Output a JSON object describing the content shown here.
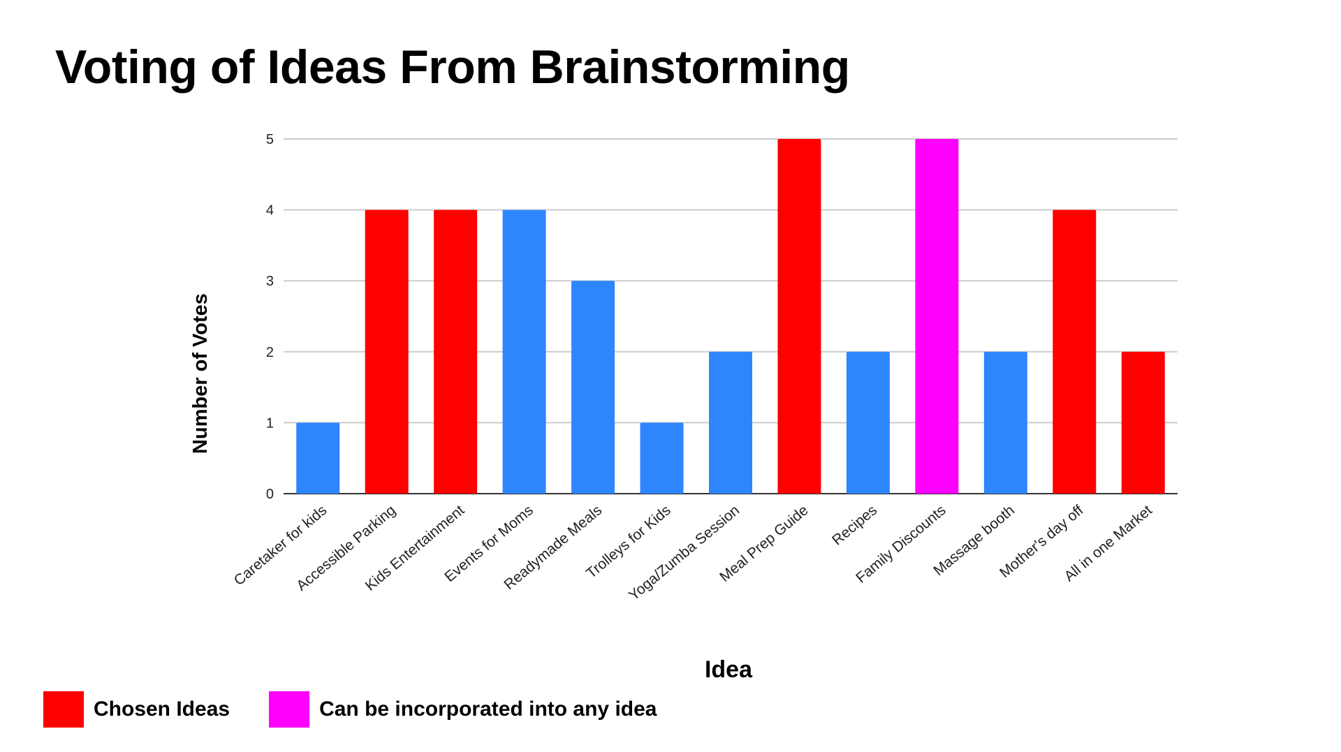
{
  "title": "Voting of Ideas From Brainstorming",
  "colors": {
    "chosen": "#ff0000",
    "incorporated": "#ff00ff",
    "default": "#2e86ff",
    "grid": "#cccccc",
    "axis": "#333333"
  },
  "legend": [
    {
      "label": "Chosen Ideas",
      "color": "#ff0000"
    },
    {
      "label": "Can be incorporated into any idea",
      "color": "#ff00ff"
    }
  ],
  "chart_data": {
    "type": "bar",
    "xlabel": "Idea",
    "ylabel": "Number of Votes",
    "ylim": [
      0,
      5
    ],
    "yticks": [
      0,
      1,
      2,
      3,
      4,
      5
    ],
    "grid": true,
    "categories": [
      "Caretaker for kids",
      "Accessible Parking",
      "Kids Entertainment",
      "Events for Moms",
      "Readymade Meals",
      "Trolleys for Kids",
      "Yoga/Zumba Session",
      "Meal Prep Guide",
      "Recipes",
      "Family Discounts",
      "Massage booth",
      "Mother's day off",
      "All in one Market"
    ],
    "values": [
      1,
      4,
      4,
      4,
      3,
      1,
      2,
      5,
      2,
      5,
      2,
      4,
      2
    ],
    "bar_colors": [
      "#2e86ff",
      "#ff0000",
      "#ff0000",
      "#2e86ff",
      "#2e86ff",
      "#2e86ff",
      "#2e86ff",
      "#ff0000",
      "#2e86ff",
      "#ff00ff",
      "#2e86ff",
      "#ff0000",
      "#ff0000"
    ]
  }
}
